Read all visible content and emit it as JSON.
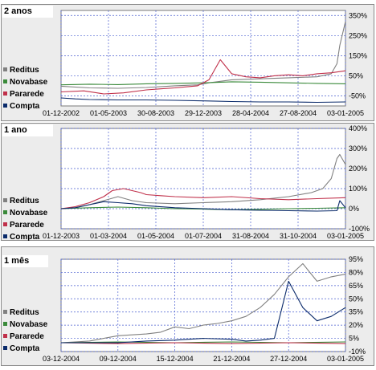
{
  "chart_data": [
    {
      "type": "line",
      "title": "2 anos",
      "x_labels": [
        "01-12-2002",
        "01-05-2003",
        "30-08-2003",
        "29-12-2003",
        "28-04-2004",
        "27-08-2004",
        "03-01-2005"
      ],
      "y_ticks": [
        350,
        250,
        150,
        50,
        -50
      ],
      "y_tick_labels": [
        "350%",
        "250%",
        "150%",
        "50%",
        "-50%"
      ],
      "ylim": [
        -100,
        375
      ],
      "grid": true,
      "series": [
        {
          "name": "Reditus",
          "color": "#808080",
          "x": [
            0,
            10,
            20,
            30,
            40,
            48,
            52,
            60,
            70,
            80,
            90,
            95,
            97,
            98,
            100
          ],
          "values": [
            -2,
            -10,
            -12,
            -8,
            0,
            5,
            15,
            30,
            35,
            40,
            45,
            60,
            110,
            200,
            320
          ]
        },
        {
          "name": "Novabase",
          "color": "#3a8a3a",
          "x": [
            0,
            10,
            20,
            30,
            40,
            50,
            60,
            70,
            80,
            90,
            100
          ],
          "values": [
            5,
            8,
            6,
            10,
            12,
            15,
            20,
            18,
            15,
            12,
            10
          ]
        },
        {
          "name": "Pararede",
          "color": "#c0304a",
          "x": [
            0,
            8,
            15,
            22,
            30,
            35,
            40,
            44,
            48,
            52,
            56,
            60,
            65,
            70,
            75,
            80,
            85,
            90,
            95,
            100
          ],
          "values": [
            -30,
            -25,
            -40,
            -35,
            -20,
            -15,
            -10,
            -5,
            0,
            30,
            130,
            60,
            45,
            40,
            50,
            55,
            50,
            60,
            65,
            75
          ]
        },
        {
          "name": "Compta",
          "color": "#0a2a6a",
          "x": [
            0,
            5,
            10,
            20,
            30,
            40,
            50,
            60,
            70,
            80,
            90,
            100
          ],
          "values": [
            -60,
            -65,
            -68,
            -70,
            -70,
            -72,
            -75,
            -78,
            -80,
            -80,
            -82,
            -80
          ]
        }
      ]
    },
    {
      "type": "line",
      "title": "1 ano",
      "x_labels": [
        "01-12-2003",
        "01-03-2004",
        "01-05-2004",
        "01-07-2004",
        "31-08-2004",
        "31-10-2004",
        "03-01-2005"
      ],
      "y_ticks": [
        400,
        300,
        200,
        100,
        0,
        -100
      ],
      "y_tick_labels": [
        "400%",
        "300%",
        "200%",
        "100%",
        "0%",
        "-100%"
      ],
      "ylim": [
        -100,
        400
      ],
      "grid": true,
      "series": [
        {
          "name": "Reditus",
          "color": "#808080",
          "x": [
            0,
            5,
            10,
            15,
            20,
            25,
            30,
            40,
            50,
            60,
            70,
            80,
            88,
            92,
            95,
            97,
            98,
            100
          ],
          "values": [
            0,
            5,
            20,
            40,
            60,
            40,
            30,
            25,
            30,
            35,
            45,
            60,
            80,
            100,
            150,
            250,
            270,
            220
          ]
        },
        {
          "name": "Novabase",
          "color": "#3a8a3a",
          "x": [
            0,
            10,
            20,
            30,
            40,
            50,
            60,
            70,
            80,
            90,
            100
          ],
          "values": [
            0,
            5,
            8,
            5,
            0,
            -2,
            -5,
            -3,
            0,
            2,
            5
          ]
        },
        {
          "name": "Pararede",
          "color": "#c0304a",
          "x": [
            0,
            5,
            10,
            15,
            18,
            22,
            25,
            28,
            30,
            35,
            40,
            50,
            60,
            70,
            80,
            90,
            100
          ],
          "values": [
            0,
            10,
            30,
            60,
            90,
            100,
            90,
            80,
            70,
            65,
            60,
            55,
            60,
            50,
            45,
            50,
            55
          ]
        },
        {
          "name": "Compta",
          "color": "#0a2a6a",
          "x": [
            0,
            5,
            10,
            15,
            20,
            25,
            30,
            40,
            50,
            60,
            70,
            80,
            90,
            97,
            98,
            100
          ],
          "values": [
            0,
            5,
            20,
            35,
            30,
            25,
            15,
            5,
            0,
            -5,
            -8,
            -10,
            -12,
            -10,
            40,
            5
          ]
        }
      ]
    },
    {
      "type": "line",
      "title": "1 mês",
      "x_labels": [
        "03-12-2004",
        "09-12-2004",
        "15-12-2004",
        "21-12-2004",
        "27-12-2004",
        "03-01-2005"
      ],
      "y_ticks": [
        95,
        80,
        65,
        50,
        35,
        20,
        5,
        -10
      ],
      "y_tick_labels": [
        "95%",
        "80%",
        "65%",
        "50%",
        "35%",
        "20%",
        "5%",
        "-10%"
      ],
      "ylim": [
        -10,
        95
      ],
      "grid": true,
      "series": [
        {
          "name": "Reditus",
          "color": "#808080",
          "x": [
            0,
            10,
            20,
            30,
            35,
            40,
            45,
            50,
            55,
            60,
            65,
            70,
            75,
            80,
            85,
            90,
            95,
            100
          ],
          "values": [
            0,
            2,
            8,
            10,
            12,
            18,
            16,
            20,
            22,
            25,
            30,
            40,
            55,
            75,
            90,
            70,
            75,
            78
          ]
        },
        {
          "name": "Novabase",
          "color": "#3a8a3a",
          "x": [
            0,
            20,
            40,
            60,
            80,
            100
          ],
          "values": [
            0,
            1,
            0,
            1,
            0,
            1
          ]
        },
        {
          "name": "Pararede",
          "color": "#c0304a",
          "x": [
            0,
            20,
            40,
            60,
            80,
            100
          ],
          "values": [
            0,
            -1,
            0,
            -1,
            0,
            -1
          ]
        },
        {
          "name": "Compta",
          "color": "#0a2a6a",
          "x": [
            0,
            20,
            30,
            40,
            50,
            60,
            65,
            70,
            75,
            80,
            85,
            90,
            95,
            100
          ],
          "values": [
            0,
            0,
            2,
            3,
            5,
            4,
            2,
            3,
            5,
            70,
            40,
            25,
            30,
            40
          ]
        }
      ]
    }
  ]
}
